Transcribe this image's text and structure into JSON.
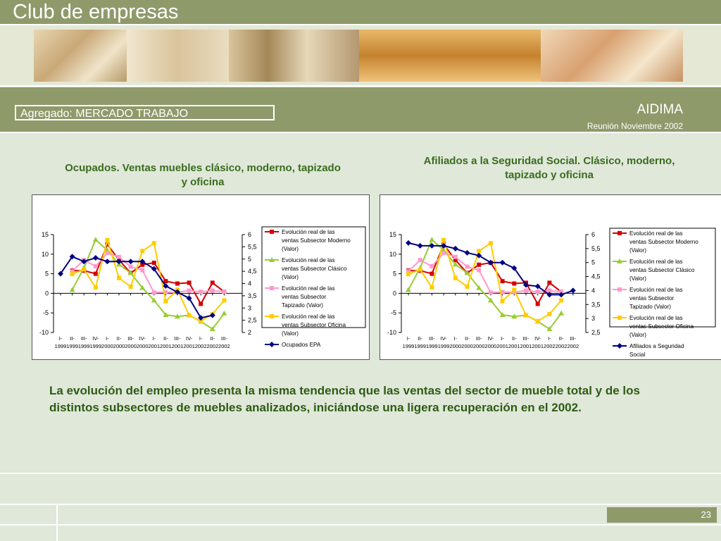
{
  "header": {
    "title": "Club de empresas",
    "section": "Agregado: MERCADO TRABAJO",
    "organization": "AIDIMA",
    "meeting": "Reunión Noviembre 2002"
  },
  "colors": {
    "header_green": "#8f9a6b",
    "title_green": "#3b6c1e",
    "moderno": "#d40000",
    "clasico": "#99cc33",
    "tapizado": "#ff99cc",
    "oficina": "#ffcc00",
    "navy": "#000080"
  },
  "summary": "La evolución del empleo presenta la misma tendencia que las ventas del sector de mueble total y de los distintos subsectores de muebles analizados, iniciándose una ligera recuperación en el 2002.",
  "page_number": "23",
  "chart_data": [
    {
      "type": "line",
      "title": "Ocupados. Ventas muebles clásico, moderno, tapizado y oficina",
      "x": [
        "I-1999",
        "II-1999",
        "III-1999",
        "IV-1999",
        "I-2000",
        "II-2000",
        "III-2000",
        "IV-2000",
        "I-2001",
        "II-2001",
        "III-2001",
        "IV-2001",
        "I-2002",
        "II-2002",
        "III-2002"
      ],
      "ylim": [
        -10,
        15
      ],
      "yticks": [
        15,
        10,
        5,
        0,
        -5,
        -10
      ],
      "y2lim": [
        2,
        6
      ],
      "y2ticks": [
        "6",
        "5,5",
        "5",
        "4,5",
        "4",
        "3,5",
        "3",
        "2,5",
        "2"
      ],
      "series": [
        {
          "name": "Evolución real de las ventas Subsector Moderno (Valor)",
          "color": "#d40000",
          "marker": "square",
          "axis": "left",
          "values": [
            null,
            5.8,
            5.8,
            5.0,
            12.5,
            8.5,
            5.2,
            7.3,
            7.8,
            3.1,
            2.5,
            2.7,
            -2.7,
            2.7,
            0.4
          ]
        },
        {
          "name": "Evolución real de las ventas Subsector Clásico (Valor)",
          "color": "#99cc33",
          "marker": "triangle",
          "axis": "left",
          "values": [
            null,
            0.9,
            6.5,
            13.7,
            11.0,
            7.4,
            5.2,
            1.4,
            -1.8,
            -5.5,
            -5.9,
            -5.6,
            -7.2,
            -9.1,
            -5.1
          ]
        },
        {
          "name": "Evolución real de las ventas Subsector Tapizado (Valor)",
          "color": "#ff99cc",
          "marker": "square",
          "axis": "left",
          "values": [
            null,
            5.6,
            8.5,
            6.9,
            10.3,
            9.3,
            6.8,
            5.9,
            0.2,
            0.3,
            0.3,
            0.7,
            0.4,
            0.7,
            0.4
          ]
        },
        {
          "name": "Evolución real de las ventas Subsector Oficina (Valor)",
          "color": "#ffcc00",
          "marker": "square",
          "axis": "left",
          "values": [
            null,
            4.9,
            6.1,
            1.5,
            13.6,
            3.9,
            1.7,
            10.8,
            12.8,
            -2.0,
            0.9,
            -5.6,
            -7.1,
            -5.3,
            -1.8
          ]
        },
        {
          "name": "Ocupados EPA",
          "color": "#000080",
          "marker": "diamond",
          "axis": "right",
          "values": [
            4.4,
            5.1,
            4.9,
            5.05,
            4.9,
            4.9,
            4.9,
            4.9,
            4.6,
            3.9,
            3.65,
            3.4,
            2.6,
            2.7,
            null
          ]
        }
      ]
    },
    {
      "type": "line",
      "title": "Afiliados a la Seguridad Social. Clásico, moderno, tapizado y oficina",
      "x": [
        "I-1999",
        "II-1999",
        "III-1999",
        "IV-1999",
        "I-2000",
        "II-2000",
        "III-2000",
        "IV-2000",
        "I-2001",
        "II-2001",
        "III-2001",
        "IV-2001",
        "I-2002",
        "II-2002",
        "III-2002"
      ],
      "ylim": [
        -10,
        15
      ],
      "yticks": [
        15,
        10,
        5,
        0,
        -5,
        -10
      ],
      "y2lim": [
        2.5,
        6
      ],
      "y2ticks": [
        "6",
        "5,5",
        "5",
        "4,5",
        "4",
        "3,5",
        "3",
        "2,5"
      ],
      "series": [
        {
          "name": "Evolución real de las ventas Subsector Moderno (Valor)",
          "color": "#d40000",
          "marker": "square",
          "axis": "left",
          "values": [
            5.8,
            5.8,
            5.0,
            12.5,
            8.5,
            5.2,
            7.3,
            7.8,
            3.1,
            2.5,
            2.7,
            -2.7,
            2.7,
            0.4,
            null
          ]
        },
        {
          "name": "Evolución real de las ventas Subsector Clásico (Valor)",
          "color": "#99cc33",
          "marker": "triangle",
          "axis": "left",
          "values": [
            0.9,
            6.5,
            13.7,
            11.0,
            7.4,
            5.2,
            1.4,
            -1.8,
            -5.5,
            -5.9,
            -5.6,
            -7.2,
            -9.1,
            -5.1,
            null
          ]
        },
        {
          "name": "Evolución real de las ventas Subsector Tapizado (Valor)",
          "color": "#ff99cc",
          "marker": "square",
          "axis": "left",
          "values": [
            5.6,
            8.5,
            6.9,
            10.3,
            9.3,
            6.8,
            5.9,
            0.2,
            0.3,
            0.3,
            0.7,
            0.4,
            0.7,
            0.4,
            null
          ]
        },
        {
          "name": "Evolución real de las ventas Subsector Oficina (Valor)",
          "color": "#ffcc00",
          "marker": "square",
          "axis": "left",
          "values": [
            4.9,
            6.1,
            1.5,
            13.6,
            3.9,
            1.7,
            10.8,
            12.8,
            -2.0,
            0.9,
            -5.6,
            -7.1,
            -5.3,
            -1.8,
            null
          ]
        },
        {
          "name": "Afiliados a Seguridad Social",
          "color": "#000080",
          "marker": "diamond",
          "axis": "right",
          "values": [
            5.7,
            5.6,
            5.6,
            5.6,
            5.5,
            5.35,
            5.25,
            5.0,
            5.0,
            4.8,
            4.2,
            4.15,
            3.85,
            3.85,
            4.0
          ]
        }
      ]
    }
  ]
}
